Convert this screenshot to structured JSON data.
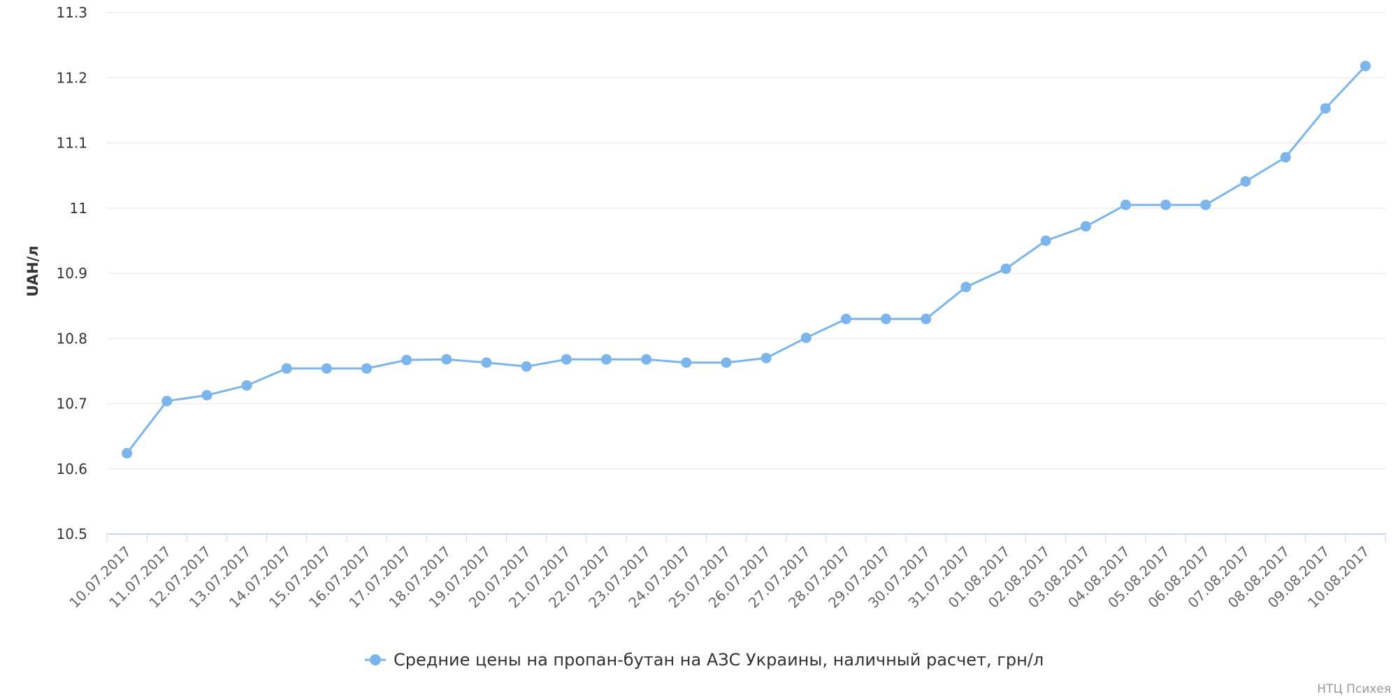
{
  "chart_data": {
    "type": "line",
    "title": "",
    "xlabel": "",
    "ylabel": "UAH/л",
    "ylim": [
      10.5,
      11.3
    ],
    "yticks": [
      "10.5",
      "10.6",
      "10.7",
      "10.8",
      "10.9",
      "11",
      "11.1",
      "11.2",
      "11.3"
    ],
    "grid": true,
    "legend_position": "bottom-center",
    "categories": [
      "10.07.2017",
      "11.07.2017",
      "12.07.2017",
      "13.07.2017",
      "14.07.2017",
      "15.07.2017",
      "16.07.2017",
      "17.07.2017",
      "18.07.2017",
      "19.07.2017",
      "20.07.2017",
      "21.07.2017",
      "22.07.2017",
      "23.07.2017",
      "24.07.2017",
      "25.07.2017",
      "26.07.2017",
      "27.07.2017",
      "28.07.2017",
      "29.07.2017",
      "30.07.2017",
      "31.07.2017",
      "01.08.2017",
      "02.08.2017",
      "03.08.2017",
      "04.08.2017",
      "05.08.2017",
      "06.08.2017",
      "07.08.2017",
      "08.08.2017",
      "09.08.2017",
      "10.08.2017"
    ],
    "series": [
      {
        "name": "Средние цены на пропан-бутан на АЗС Украины, наличный расчет, грн/л",
        "color": "#7cb5ec",
        "values": [
          10.624,
          10.704,
          10.713,
          10.728,
          10.754,
          10.754,
          10.754,
          10.767,
          10.768,
          10.763,
          10.757,
          10.768,
          10.768,
          10.768,
          10.763,
          10.763,
          10.77,
          10.801,
          10.83,
          10.83,
          10.83,
          10.879,
          10.907,
          10.95,
          10.972,
          11.005,
          11.005,
          11.005,
          11.041,
          11.078,
          11.153,
          11.218
        ]
      }
    ]
  },
  "credit": "НТЦ Психея",
  "colors": {
    "series": "#7cb5ec",
    "grid": "#e6e6e6",
    "axis": "#ccd6eb"
  }
}
